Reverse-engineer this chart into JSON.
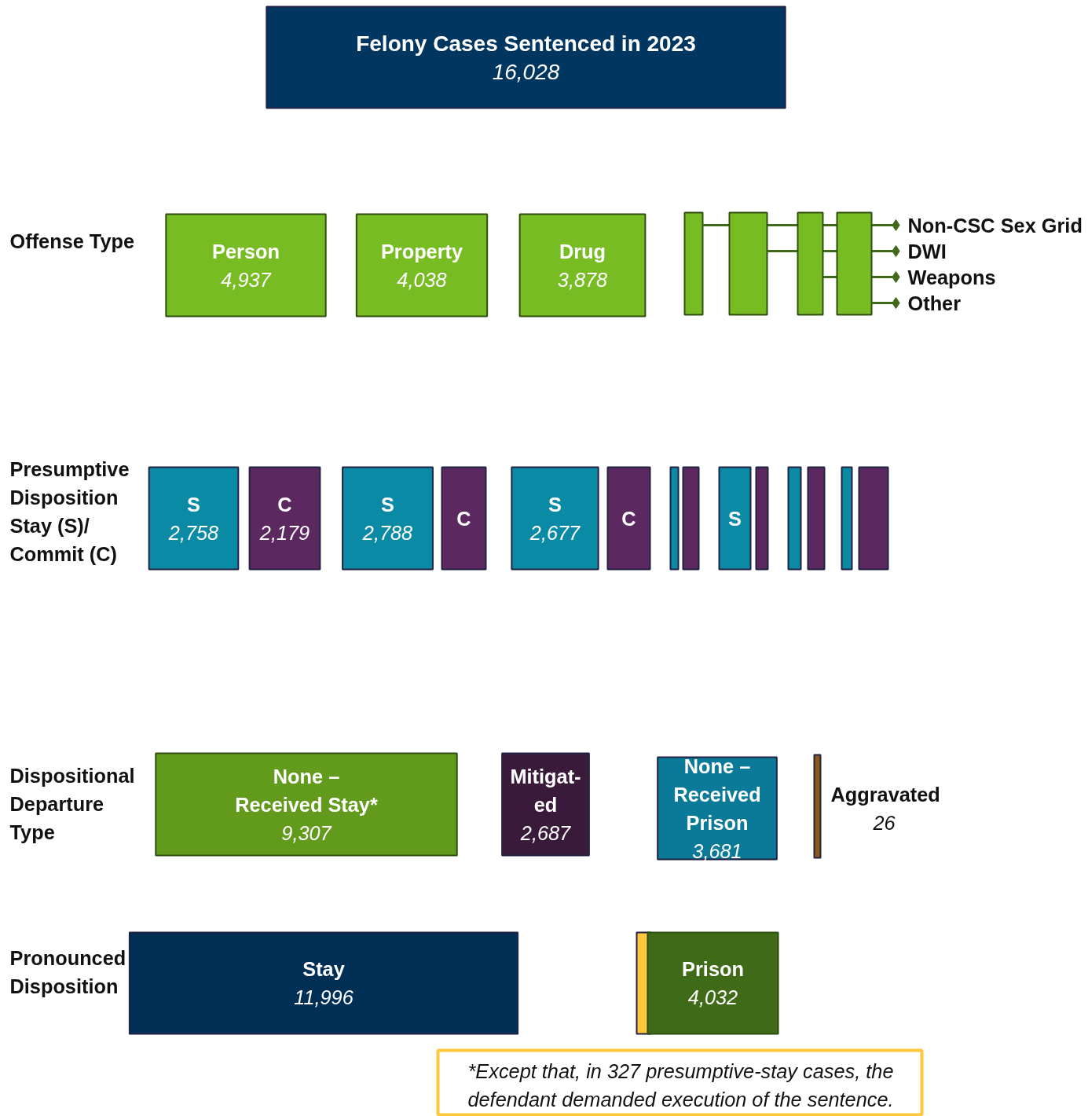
{
  "chart_data": {
    "type": "other",
    "categories": [
      "Felony Cases Sentenced in 2023",
      "Person",
      "Property",
      "Drug",
      "Non-CSC Sex Grid",
      "DWI",
      "Weapons",
      "Other",
      "S",
      "C",
      "S",
      "C",
      "S",
      "C",
      null,
      null,
      "S",
      null,
      null,
      null,
      null,
      null,
      "None –\nReceived Stay*",
      "Mitigat-\ned",
      "None –\nReceived\nPrison",
      "Aggravated",
      "Stay",
      null,
      "Prison"
    ],
    "values": [
      16028,
      4937,
      4038,
      3878,
      null,
      null,
      null,
      null,
      2758,
      2179,
      2788,
      null,
      2677,
      null,
      null,
      null,
      null,
      null,
      null,
      null,
      null,
      null,
      9307,
      2687,
      3681,
      26,
      11996,
      null,
      4032
    ],
    "value_labels": [
      "16,028",
      "4,937",
      "4,038",
      "3,878",
      null,
      null,
      null,
      null,
      "2,758",
      "2,179",
      "2,788",
      null,
      "2,677",
      null,
      null,
      null,
      null,
      null,
      null,
      null,
      null,
      null,
      "9,307",
      "2,687",
      "3,681",
      "26",
      "11,996",
      null,
      "4,032"
    ],
    "colors": [
      "#003660",
      "#78bc23",
      "#78bc23",
      "#78bc23",
      "#78bc23",
      "#78bc23",
      "#78bc23",
      "#78bc23",
      "#0a8aa5",
      "#5c2860",
      "#0a8aa5",
      "#5c2860",
      "#0a8aa5",
      "#5c2860",
      "#0a8aa5",
      "#5c2860",
      "#0a8aa5",
      "#5c2860",
      "#0a8aa5",
      "#5c2860",
      "#0a8aa5",
      "#5c2860",
      "#629a1c",
      "#3a1a3a",
      "#0b7a98",
      "#8a5a1a",
      "#002f55",
      "#ffc83d",
      "#3f6a17"
    ],
    "annotations": [
      "Offense Type",
      "Presumptive\nDisposition\nStay (S)/\nCommit (C)",
      "Dispositional\nDeparture\nType",
      "Pronounced\nDisposition",
      "*Except that, in 327 presumptive-stay cases, the\ndefendant demanded execution of the sentence."
    ]
  }
}
